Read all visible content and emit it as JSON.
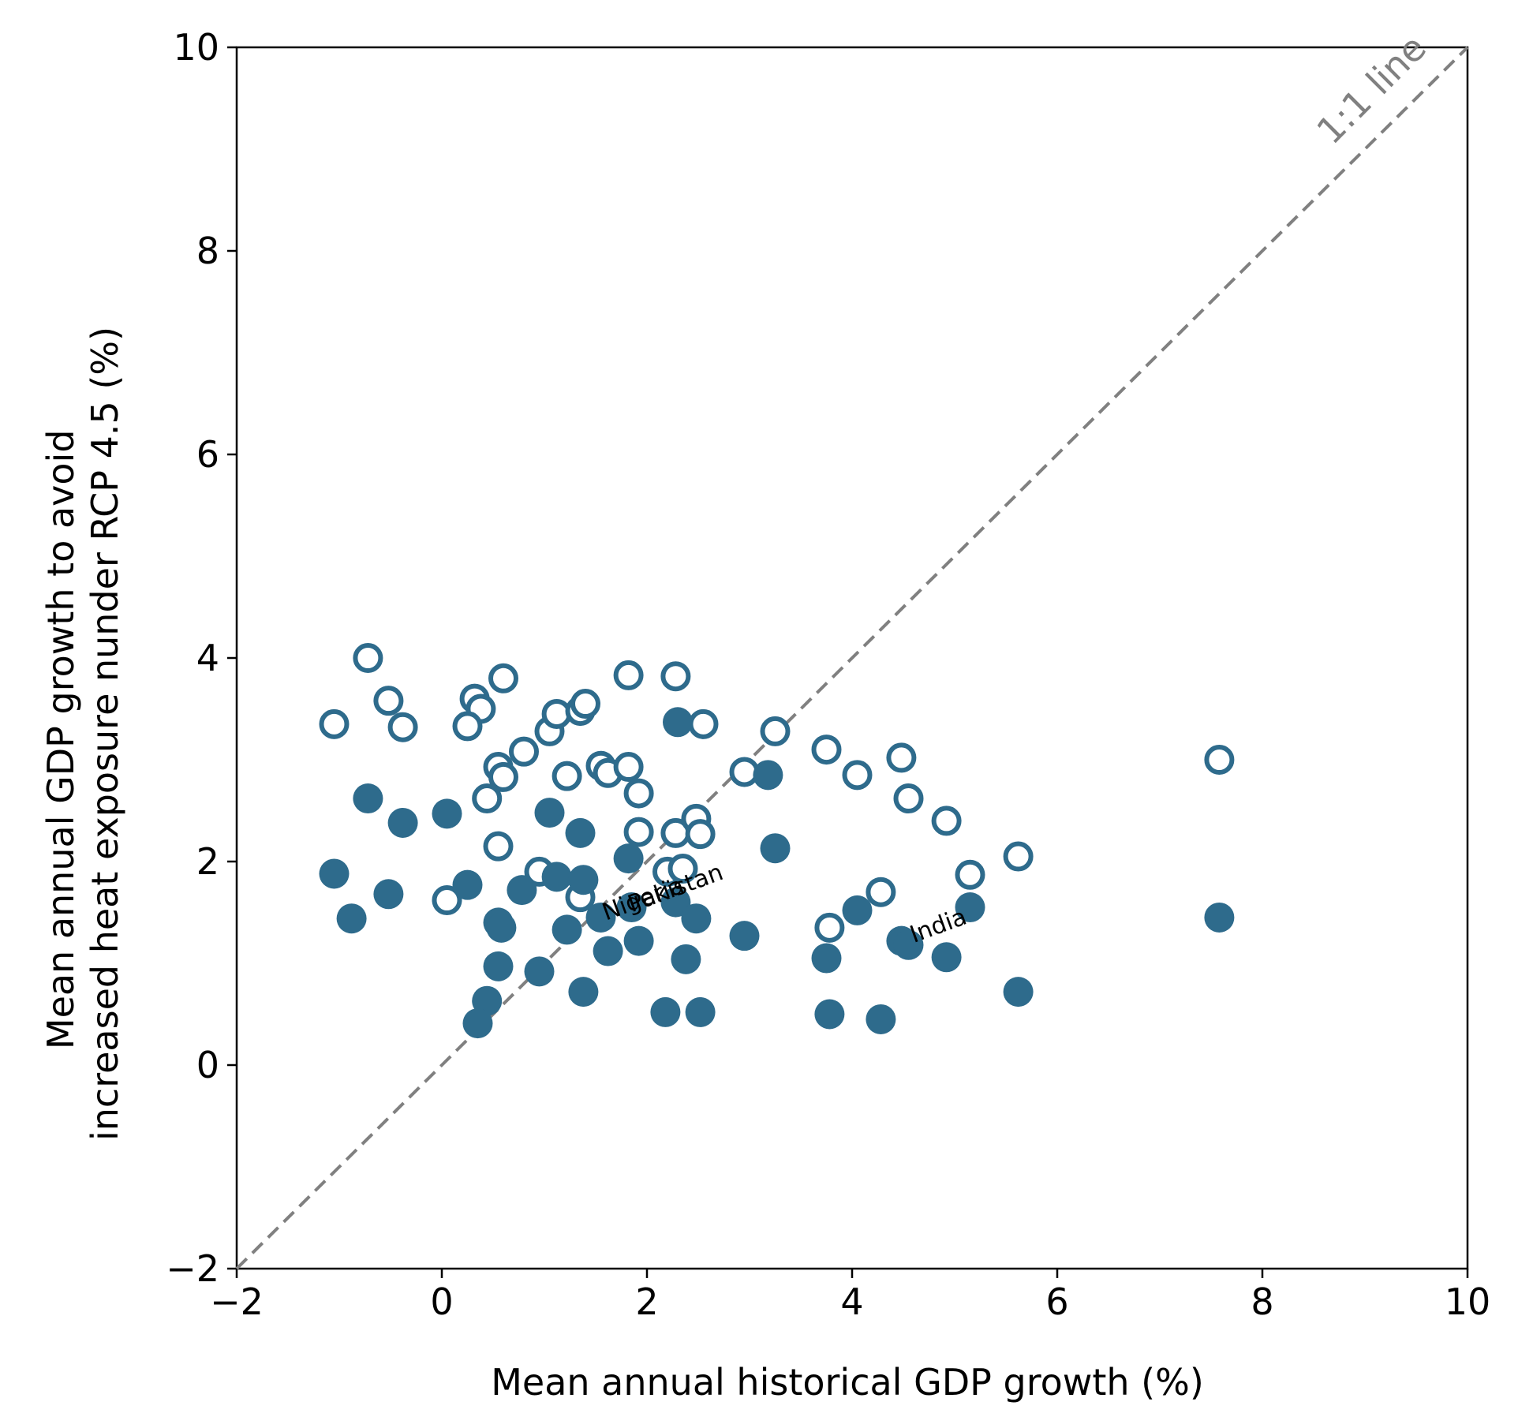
{
  "chart_data": {
    "type": "scatter",
    "title": "",
    "xlabel": "Mean annual historical GDP growth (%)",
    "ylabel_lines": [
      "Mean annual GDP growth to avoid",
      "increased heat exposure nunder RCP 4.5 (%)"
    ],
    "xlim": [
      -2,
      10
    ],
    "ylim": [
      -2,
      10
    ],
    "x_ticks": [
      -2,
      0,
      2,
      4,
      6,
      8,
      10
    ],
    "y_ticks": [
      -2,
      0,
      2,
      4,
      6,
      8,
      10
    ],
    "x_tick_labels": [
      "−2",
      "0",
      "2",
      "4",
      "6",
      "8",
      "10"
    ],
    "y_tick_labels": [
      "−2",
      "0",
      "2",
      "4",
      "6",
      "8",
      "10"
    ],
    "grid": false,
    "marker_color": "#2e6b8c",
    "reference_line": {
      "label": "1:1 line",
      "color": "#808080",
      "style": "dashed",
      "from": [
        -2,
        -2
      ],
      "to": [
        10,
        10
      ]
    },
    "series": [
      {
        "marker": "open-circle",
        "points": [
          [
            -1.05,
            3.35
          ],
          [
            -0.72,
            4.0
          ],
          [
            -0.52,
            3.58
          ],
          [
            -0.38,
            3.32
          ],
          [
            0.32,
            3.6
          ],
          [
            0.38,
            3.5
          ],
          [
            0.25,
            3.33
          ],
          [
            0.6,
            3.8
          ],
          [
            0.55,
            2.93
          ],
          [
            0.6,
            2.83
          ],
          [
            0.44,
            2.62
          ],
          [
            0.55,
            2.15
          ],
          [
            0.05,
            1.62
          ],
          [
            0.8,
            3.08
          ],
          [
            1.05,
            3.28
          ],
          [
            1.12,
            3.45
          ],
          [
            1.35,
            3.48
          ],
          [
            1.4,
            3.55
          ],
          [
            1.22,
            2.84
          ],
          [
            1.55,
            2.94
          ],
          [
            1.62,
            2.87
          ],
          [
            1.82,
            3.83
          ],
          [
            1.82,
            2.93
          ],
          [
            1.92,
            2.67
          ],
          [
            1.92,
            2.29
          ],
          [
            0.95,
            1.9
          ],
          [
            1.35,
            1.65
          ],
          [
            2.28,
            3.82
          ],
          [
            2.55,
            3.35
          ],
          [
            2.28,
            2.28
          ],
          [
            2.48,
            2.42
          ],
          [
            2.52,
            2.27
          ],
          [
            2.2,
            1.9
          ],
          [
            2.35,
            1.93
          ],
          [
            2.95,
            2.88
          ],
          [
            3.25,
            3.28
          ],
          [
            3.75,
            3.1
          ],
          [
            4.05,
            2.85
          ],
          [
            4.48,
            3.02
          ],
          [
            4.55,
            2.62
          ],
          [
            4.92,
            2.4
          ],
          [
            3.78,
            1.35
          ],
          [
            4.28,
            1.7
          ],
          [
            5.15,
            1.87
          ],
          [
            5.62,
            2.05
          ],
          [
            7.58,
            3.0
          ]
        ]
      },
      {
        "marker": "filled-circle",
        "points": [
          [
            -1.05,
            1.88
          ],
          [
            -0.88,
            1.44
          ],
          [
            -0.72,
            2.62
          ],
          [
            -0.52,
            1.68
          ],
          [
            -0.38,
            2.38
          ],
          [
            0.05,
            2.47
          ],
          [
            0.25,
            1.77
          ],
          [
            0.55,
            1.4
          ],
          [
            0.58,
            1.35
          ],
          [
            0.55,
            0.97
          ],
          [
            0.44,
            0.63
          ],
          [
            0.35,
            0.41
          ],
          [
            0.78,
            1.72
          ],
          [
            1.12,
            1.85
          ],
          [
            1.05,
            2.48
          ],
          [
            1.35,
            2.28
          ],
          [
            1.38,
            1.82
          ],
          [
            1.22,
            1.33
          ],
          [
            1.55,
            1.45
          ],
          [
            1.62,
            1.12
          ],
          [
            1.82,
            2.03
          ],
          [
            1.85,
            1.55
          ],
          [
            1.92,
            1.22
          ],
          [
            0.95,
            0.92
          ],
          [
            1.38,
            0.72
          ],
          [
            2.3,
            3.37
          ],
          [
            2.28,
            1.6
          ],
          [
            2.48,
            1.44
          ],
          [
            2.38,
            1.04
          ],
          [
            2.18,
            0.52
          ],
          [
            2.52,
            0.52
          ],
          [
            2.95,
            1.27
          ],
          [
            3.18,
            2.85
          ],
          [
            3.25,
            2.13
          ],
          [
            3.75,
            1.05
          ],
          [
            3.78,
            0.5
          ],
          [
            4.05,
            1.52
          ],
          [
            4.28,
            0.45
          ],
          [
            4.48,
            1.22
          ],
          [
            4.55,
            1.18
          ],
          [
            4.92,
            1.06
          ],
          [
            5.15,
            1.55
          ],
          [
            5.62,
            0.72
          ],
          [
            7.58,
            1.45
          ]
        ]
      }
    ],
    "annotations": [
      {
        "text": "Nigeria",
        "x": 1.6,
        "y": 1.42
      },
      {
        "text": "Pakistan",
        "x": 1.85,
        "y": 1.5
      },
      {
        "text": "India",
        "x": 4.6,
        "y": 1.2
      }
    ]
  }
}
